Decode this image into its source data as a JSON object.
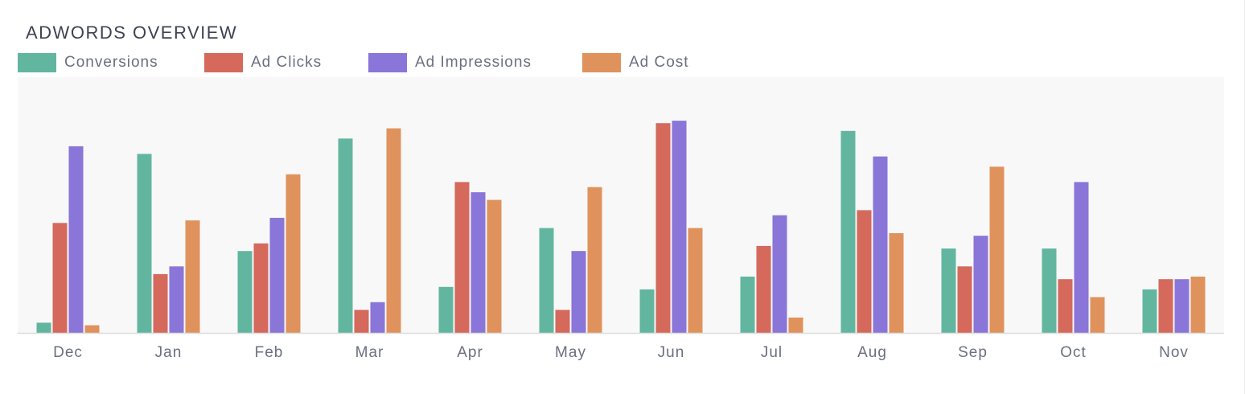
{
  "card": {
    "title": "ADWORDS OVERVIEW"
  },
  "chart_data": {
    "type": "bar",
    "title": "ADWORDS OVERVIEW",
    "xlabel": "",
    "ylabel": "",
    "ylim": [
      0,
      100
    ],
    "grid": false,
    "legend": "top-left",
    "categories": [
      "Dec",
      "Jan",
      "Feb",
      "Mar",
      "Apr",
      "May",
      "Jun",
      "Jul",
      "Aug",
      "Sep",
      "Oct",
      "Nov"
    ],
    "series": [
      {
        "name": "Conversions",
        "color": "#62b6a0",
        "values": [
          4,
          70,
          32,
          76,
          18,
          41,
          17,
          22,
          79,
          33,
          33,
          17
        ]
      },
      {
        "name": "Ad Clicks",
        "color": "#d4695c",
        "values": [
          43,
          23,
          35,
          9,
          59,
          9,
          82,
          34,
          48,
          26,
          21,
          21
        ]
      },
      {
        "name": "Ad Impressions",
        "color": "#8a75d8",
        "values": [
          73,
          26,
          45,
          12,
          55,
          32,
          83,
          46,
          69,
          38,
          59,
          21
        ]
      },
      {
        "name": "Ad Cost",
        "color": "#e0925c",
        "values": [
          3,
          44,
          62,
          80,
          52,
          57,
          41,
          6,
          39,
          65,
          14,
          22
        ]
      }
    ]
  }
}
